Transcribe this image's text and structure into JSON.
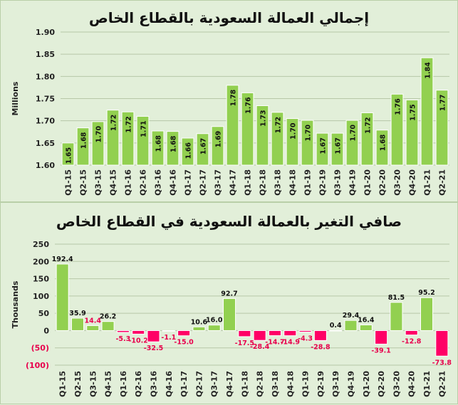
{
  "colors": {
    "positive": "#92d050",
    "negative": "#ff0066",
    "neg_label": "#e8004c",
    "grid": "#b7c7a8",
    "background": "#e2efd9"
  },
  "chart_data": [
    {
      "type": "bar",
      "title": "إجمالي العمالة السعودية بالقطاع الخاص",
      "ylabel": "Millions",
      "xlabel": "",
      "ylim": [
        1.6,
        1.9
      ],
      "yticks": [
        "1.60",
        "1.65",
        "1.70",
        "1.75",
        "1.80",
        "1.85",
        "1.90"
      ],
      "grid": true,
      "categories": [
        "Q1-15",
        "Q2-15",
        "Q3-15",
        "Q4-15",
        "Q1-16",
        "Q2-16",
        "Q3-16",
        "Q4-16",
        "Q1-17",
        "Q2-17",
        "Q3-17",
        "Q4-17",
        "Q1-18",
        "Q2-18",
        "Q3-18",
        "Q4-18",
        "Q1-19",
        "Q2-19",
        "Q3-19",
        "Q4-19",
        "Q1-20",
        "Q2-20",
        "Q3-20",
        "Q4-20",
        "Q1-21",
        "Q2-21"
      ],
      "values": [
        1.65,
        1.684,
        1.698,
        1.724,
        1.72,
        1.71,
        1.677,
        1.676,
        1.661,
        1.671,
        1.687,
        1.78,
        1.763,
        1.734,
        1.719,
        1.705,
        1.701,
        1.672,
        1.672,
        1.701,
        1.718,
        1.679,
        1.76,
        1.747,
        1.842,
        1.769
      ],
      "labels": [
        "1.65",
        "1.68",
        "1.70",
        "1.72",
        "1.72",
        "1.71",
        "1.68",
        "1.68",
        "1.66",
        "1.67",
        "1.69",
        "1.78",
        "1.76",
        "1.73",
        "1.72",
        "1.70",
        "1.70",
        "1.67",
        "1.67",
        "1.70",
        "1.72",
        "1.68",
        "1.76",
        "1.75",
        "1.84",
        "1.77"
      ]
    },
    {
      "type": "bar",
      "title": "صافي التغير بالعمالة السعودية في القطاع الخاص",
      "ylabel": "Thousands",
      "xlabel": "",
      "ylim": [
        -100,
        250
      ],
      "yticks": [
        "250",
        "200",
        "150",
        "100",
        "50",
        "0",
        "(50)",
        "(100)"
      ],
      "grid": true,
      "categories": [
        "Q1-15",
        "Q2-15",
        "Q3-15",
        "Q4-15",
        "Q1-16",
        "Q2-16",
        "Q3-16",
        "Q4-16",
        "Q1-17",
        "Q2-17",
        "Q3-17",
        "Q4-17",
        "Q1-18",
        "Q2-18",
        "Q3-18",
        "Q4-18",
        "Q1-19",
        "Q2-19",
        "Q3-19",
        "Q4-19",
        "Q1-20",
        "Q2-20",
        "Q3-20",
        "Q4-20",
        "Q1-21",
        "Q2-21"
      ],
      "values": [
        192.4,
        35.9,
        14.4,
        26.2,
        -5.3,
        -10.2,
        -32.5,
        -1.1,
        -15.0,
        10.6,
        16.0,
        92.7,
        -17.5,
        -28.4,
        -14.7,
        -14.9,
        -4.3,
        -28.8,
        0.4,
        29.4,
        16.4,
        -39.1,
        81.5,
        -12.8,
        95.2,
        -73.8
      ],
      "labels": [
        "192.4",
        "35.9",
        "14.4",
        "26.2",
        "-5.3",
        "-10.2",
        "-32.5",
        "-1.1",
        "-15.0",
        "10.6",
        "16.0",
        "92.7",
        "-17.5",
        "-28.4",
        "-14.7",
        "-14.9",
        "-4.3",
        "-28.8",
        "0.4",
        "29.4",
        "16.4",
        "-39.1",
        "81.5",
        "-12.8",
        "95.2",
        "-73.8"
      ]
    }
  ]
}
